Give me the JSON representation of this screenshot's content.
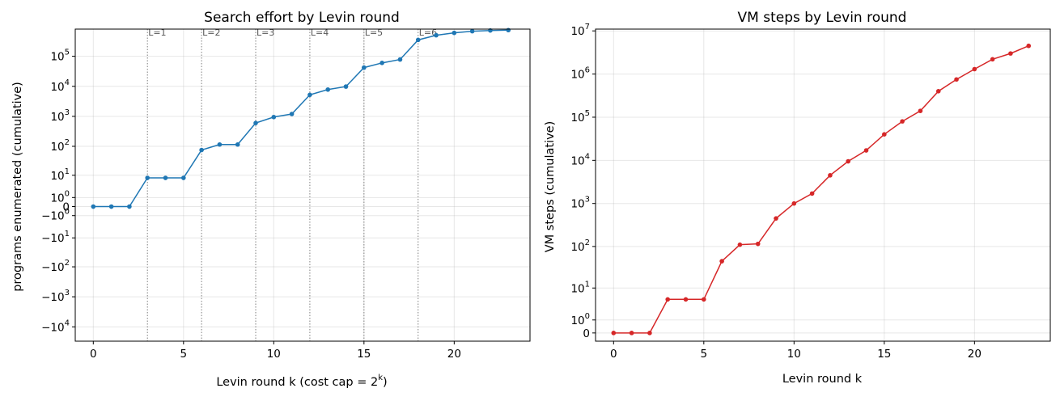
{
  "chart_data": [
    {
      "type": "line",
      "title": "Search effort by Levin round",
      "xlabel": "Levin round k  (cost cap = 2",
      "xlabel_sup": "k",
      "xlabel_end": ")",
      "ylabel": "programs enumerated (cumulative)",
      "yscale": "symlog",
      "grid": true,
      "color": "#1f77b4",
      "xlim": [
        -1,
        24.2
      ],
      "x_ticks": [
        "0",
        "5",
        "10",
        "15",
        "20"
      ],
      "y_ticks": [
        {
          "value": 100000,
          "base": "10",
          "exp": "5"
        },
        {
          "value": 10000,
          "base": "10",
          "exp": "4"
        },
        {
          "value": 1000,
          "base": "10",
          "exp": "3"
        },
        {
          "value": 100,
          "base": "10",
          "exp": "2"
        },
        {
          "value": 10,
          "base": "10",
          "exp": "1"
        },
        {
          "value": 1,
          "base": "10",
          "exp": "0"
        },
        {
          "value": 0,
          "base": "0",
          "exp": ""
        },
        {
          "value": -1,
          "base": "−10",
          "exp": "0"
        },
        {
          "value": -10,
          "base": "−10",
          "exp": "1"
        },
        {
          "value": -100,
          "base": "−10",
          "exp": "2"
        },
        {
          "value": -1000,
          "base": "−10",
          "exp": "3"
        },
        {
          "value": -10000,
          "base": "−10",
          "exp": "4"
        }
      ],
      "x": [
        0,
        1,
        2,
        3,
        4,
        5,
        6,
        7,
        8,
        9,
        10,
        11,
        12,
        13,
        14,
        15,
        16,
        17,
        18,
        19,
        20,
        21,
        22,
        23
      ],
      "y": [
        0,
        0,
        0,
        8,
        8,
        8,
        75,
        115,
        115,
        600,
        950,
        1200,
        5200,
        7800,
        9800,
        42000,
        60000,
        78000,
        350000,
        500000,
        600000,
        680000,
        720000,
        740000
      ],
      "vlines": [
        {
          "x": 3,
          "label": "L=1"
        },
        {
          "x": 6,
          "label": "L=2"
        },
        {
          "x": 9,
          "label": "L=3"
        },
        {
          "x": 12,
          "label": "L=4"
        },
        {
          "x": 15,
          "label": "L=5"
        },
        {
          "x": 18,
          "label": "L=6"
        }
      ]
    },
    {
      "type": "line",
      "title": "VM steps by Levin round",
      "xlabel": "Levin round k",
      "ylabel": "VM steps (cumulative)",
      "yscale": "symlog",
      "grid": true,
      "color": "#d62728",
      "xlim": [
        -1,
        24.2
      ],
      "x_ticks": [
        "0",
        "5",
        "10",
        "15",
        "20"
      ],
      "y_ticks": [
        {
          "value": 10000000,
          "base": "10",
          "exp": "7"
        },
        {
          "value": 1000000,
          "base": "10",
          "exp": "6"
        },
        {
          "value": 100000,
          "base": "10",
          "exp": "5"
        },
        {
          "value": 10000,
          "base": "10",
          "exp": "4"
        },
        {
          "value": 1000,
          "base": "10",
          "exp": "3"
        },
        {
          "value": 100,
          "base": "10",
          "exp": "2"
        },
        {
          "value": 10,
          "base": "10",
          "exp": "1"
        },
        {
          "value": 1,
          "base": "10",
          "exp": "0"
        },
        {
          "value": 0,
          "base": "0",
          "exp": ""
        }
      ],
      "x": [
        0,
        1,
        2,
        3,
        4,
        5,
        6,
        7,
        8,
        9,
        10,
        11,
        12,
        13,
        14,
        15,
        16,
        17,
        18,
        19,
        20,
        21,
        22,
        23
      ],
      "y": [
        0,
        0,
        0,
        5,
        5,
        5,
        45,
        110,
        115,
        450,
        1000,
        1700,
        4500,
        9500,
        17000,
        40000,
        80000,
        140000,
        400000,
        750000,
        1300000,
        2200000,
        3000000,
        4500000
      ]
    }
  ]
}
